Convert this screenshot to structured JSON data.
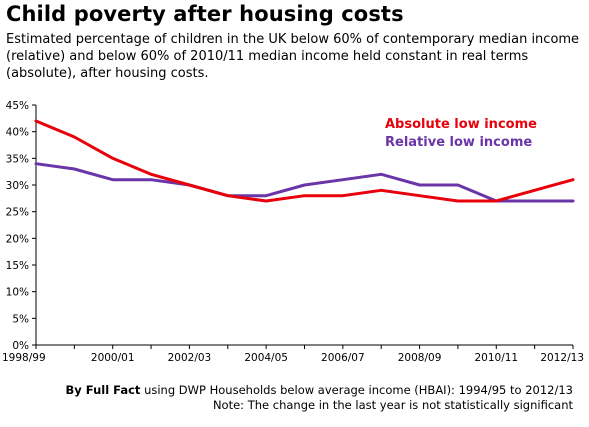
{
  "header": {
    "title": "Child poverty after housing costs",
    "subtitle": "Estimated percentage of children in the UK below 60% of contemporary median income (relative) and below 60% of 2010/11 median income held constant in real terms (absolute), after housing costs."
  },
  "source": {
    "by": "By Full Fact",
    "text": " using DWP Households below average income (HBAI): 1994/95  to 2012/13",
    "note": "Note: The change in the last year is not statistically  significant"
  },
  "chart_data": {
    "type": "line",
    "x": [
      "1998/99",
      "1999/00",
      "2000/01",
      "2001/02",
      "2002/03",
      "2003/04",
      "2004/05",
      "2005/06",
      "2006/07",
      "2007/08",
      "2008/09",
      "2009/10",
      "2010/11",
      "2011/12",
      "2012/13"
    ],
    "xtick_labels": [
      "1998/99",
      "2000/01",
      "2002/03",
      "2004/05",
      "2006/07",
      "2008/09",
      "2010/11",
      "2012/13"
    ],
    "ylim": [
      0,
      45
    ],
    "yticks": [
      "0%",
      "5%",
      "10%",
      "15%",
      "20%",
      "25%",
      "30%",
      "35%",
      "40%",
      "45%"
    ],
    "grid": false,
    "legend_position": "top-right",
    "series": [
      {
        "name": "Absolute low income",
        "color": "#e8000b",
        "values": [
          42,
          39,
          35,
          32,
          30,
          28,
          27,
          28,
          28,
          29,
          28,
          27,
          27,
          29,
          31
        ]
      },
      {
        "name": "Relative low income",
        "color": "#6a35a8",
        "values": [
          34,
          33,
          31,
          31,
          30,
          28,
          28,
          30,
          31,
          32,
          30,
          30,
          27,
          27,
          27
        ]
      }
    ]
  }
}
